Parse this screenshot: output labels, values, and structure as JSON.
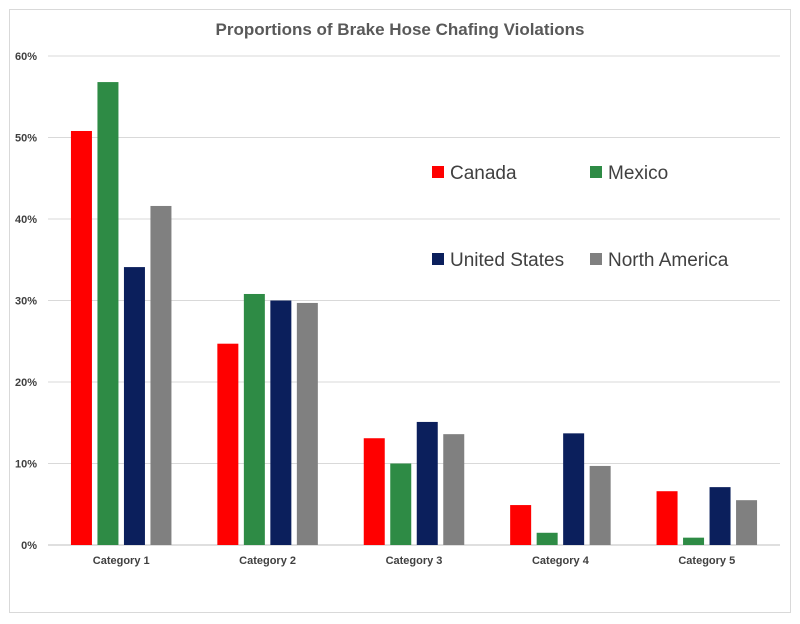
{
  "chart_data": {
    "type": "bar",
    "title": "Proportions of Brake Hose Chafing Violations",
    "xlabel": "",
    "ylabel": "",
    "ylim": [
      0,
      60
    ],
    "yticks": [
      "0%",
      "10%",
      "20%",
      "30%",
      "40%",
      "50%",
      "60%"
    ],
    "categories": [
      "Category 1",
      "Category 2",
      "Category 3",
      "Category 4",
      "Category 5"
    ],
    "series": [
      {
        "name": "Canada",
        "color": "#ff0000",
        "values": [
          50.8,
          24.7,
          13.1,
          4.9,
          6.6
        ]
      },
      {
        "name": "Mexico",
        "color": "#2e8b45",
        "values": [
          56.8,
          30.8,
          10.0,
          1.5,
          0.9
        ]
      },
      {
        "name": "United States",
        "color": "#0b1f5c",
        "values": [
          34.1,
          30.0,
          15.1,
          13.7,
          7.1
        ]
      },
      {
        "name": "North America",
        "color": "#808080",
        "values": [
          41.6,
          29.7,
          13.6,
          9.7,
          5.5
        ]
      }
    ],
    "grid": true,
    "legend": "upper-right"
  }
}
